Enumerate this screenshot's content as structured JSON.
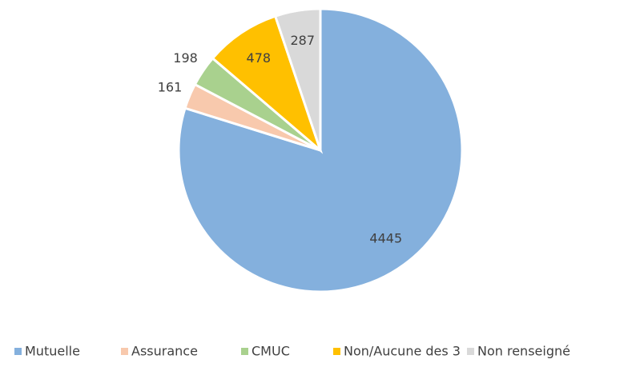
{
  "chart_data": {
    "type": "pie",
    "categories": [
      "Mutuelle",
      "Assurance",
      "CMUC",
      "Non/Aucune des 3",
      "Non renseigné"
    ],
    "values": [
      4445,
      161,
      198,
      478,
      287
    ],
    "colors": [
      "#84b0dd",
      "#f8c9ad",
      "#a9d18e",
      "#ffc000",
      "#d9d9d9"
    ],
    "legend": "bottom"
  }
}
